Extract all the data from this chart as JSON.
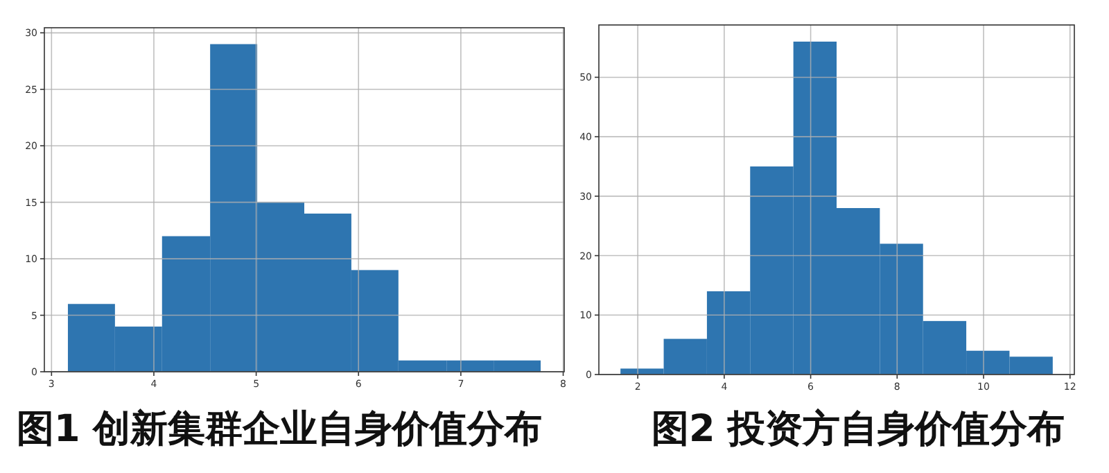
{
  "chart_data": [
    {
      "type": "histogram",
      "bins": [
        3.16,
        3.62,
        4.08,
        4.55,
        5.01,
        5.47,
        5.93,
        6.39,
        6.86,
        7.32,
        7.78
      ],
      "values": [
        6,
        4,
        12,
        29,
        15,
        14,
        9,
        1,
        1,
        1
      ],
      "color": "#2e75b0",
      "xlim": [
        2.93,
        8.01
      ],
      "ylim": [
        0,
        30.45
      ],
      "xticks": [
        3,
        4,
        5,
        6,
        7,
        8
      ],
      "yticks": [
        0,
        5,
        10,
        15,
        20,
        25,
        30
      ],
      "grid": true,
      "annotations": [
        "图1 创新集群企业自身价值分布"
      ]
    },
    {
      "type": "histogram",
      "bins": [
        1.6,
        2.6,
        3.6,
        4.6,
        5.6,
        6.6,
        7.6,
        8.6,
        9.6,
        10.6,
        11.6
      ],
      "values": [
        1,
        6,
        14,
        35,
        56,
        28,
        22,
        9,
        4,
        3
      ],
      "color": "#2e75b0",
      "xlim": [
        1.1,
        12.1
      ],
      "ylim": [
        0,
        58.8
      ],
      "xticks": [
        2,
        4,
        6,
        8,
        10,
        12
      ],
      "yticks": [
        0,
        10,
        20,
        30,
        40,
        50
      ],
      "grid": true,
      "annotations": [
        "图2 投资方自身价值分布"
      ]
    }
  ]
}
